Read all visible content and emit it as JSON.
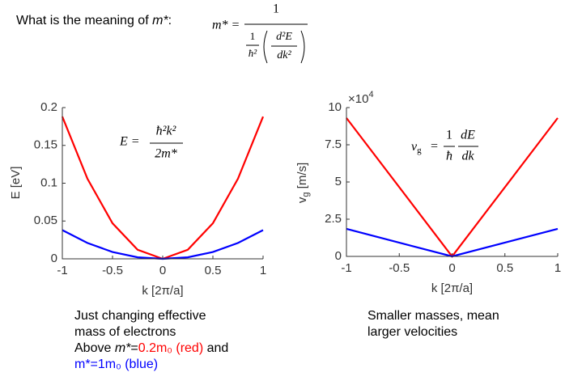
{
  "header": {
    "question": "What is the meaning of",
    "symbol": "m*",
    "colon": ":",
    "formula": {
      "lhs": "m* =",
      "numerator": "1",
      "inner_numerator": "1",
      "inner_denominator": "ħ²",
      "deriv_numerator": "d²E",
      "deriv_denominator": "dk²"
    }
  },
  "chart_data": [
    {
      "type": "line",
      "xlabel": "k [2π/a]",
      "ylabel": "E [eV]",
      "x": [
        -1,
        -0.75,
        -0.5,
        -0.25,
        0,
        0.25,
        0.5,
        0.75,
        1
      ],
      "series": [
        {
          "name": "0.2m₀",
          "color": "#ff0000",
          "values": [
            0.188,
            0.106,
            0.047,
            0.012,
            0,
            0.012,
            0.047,
            0.106,
            0.188
          ]
        },
        {
          "name": "1m₀",
          "color": "#0000ff",
          "values": [
            0.038,
            0.021,
            0.009,
            0.002,
            0,
            0.002,
            0.009,
            0.021,
            0.038
          ]
        }
      ],
      "xlim": [
        -1,
        1
      ],
      "xticks": [
        -1,
        -0.5,
        0,
        0.5,
        1
      ],
      "ylim": [
        0,
        0.2
      ],
      "yticks": [
        0,
        0.05,
        0.1,
        0.15,
        0.2
      ],
      "annotation": {
        "lhs": "E =",
        "numerator": "ħ²k²",
        "denominator": "2m*"
      }
    },
    {
      "type": "line",
      "xlabel": "k [2π/a]",
      "ylabel": {
        "main": "v",
        "sub": "g",
        "rest": " [m/s]"
      },
      "y_multiplier": {
        "base": "×10",
        "exponent": "4"
      },
      "x": [
        -1,
        0,
        1
      ],
      "series": [
        {
          "name": "0.2m₀",
          "color": "#ff0000",
          "values": [
            9.3,
            0,
            9.3
          ]
        },
        {
          "name": "1m₀",
          "color": "#0000ff",
          "values": [
            1.85,
            0,
            1.85
          ]
        }
      ],
      "xlim": [
        -1,
        1
      ],
      "xticks": [
        -1,
        -0.5,
        0,
        0.5,
        1
      ],
      "ylim": [
        0,
        10
      ],
      "yticks": [
        0,
        2.5,
        5,
        7.5,
        10
      ],
      "annotation": {
        "lhs": "v",
        "sub": "g",
        "eq": "=",
        "numerator": "1",
        "denominator": "ħ",
        "deriv_numerator": "dE",
        "deriv_denominator": "dk"
      }
    }
  ],
  "captions": {
    "left": {
      "line1": "Just changing effective",
      "line2": "mass of electrons",
      "line3_start": "Above ",
      "m1": "m*",
      "eq1": "=",
      "red_part": "0.2m₀ (red)",
      "line3_end": " and",
      "blue_part": "m*=1m₀ (blue)"
    },
    "right": {
      "line1": "Smaller masses, mean",
      "line2": "larger velocities"
    }
  }
}
